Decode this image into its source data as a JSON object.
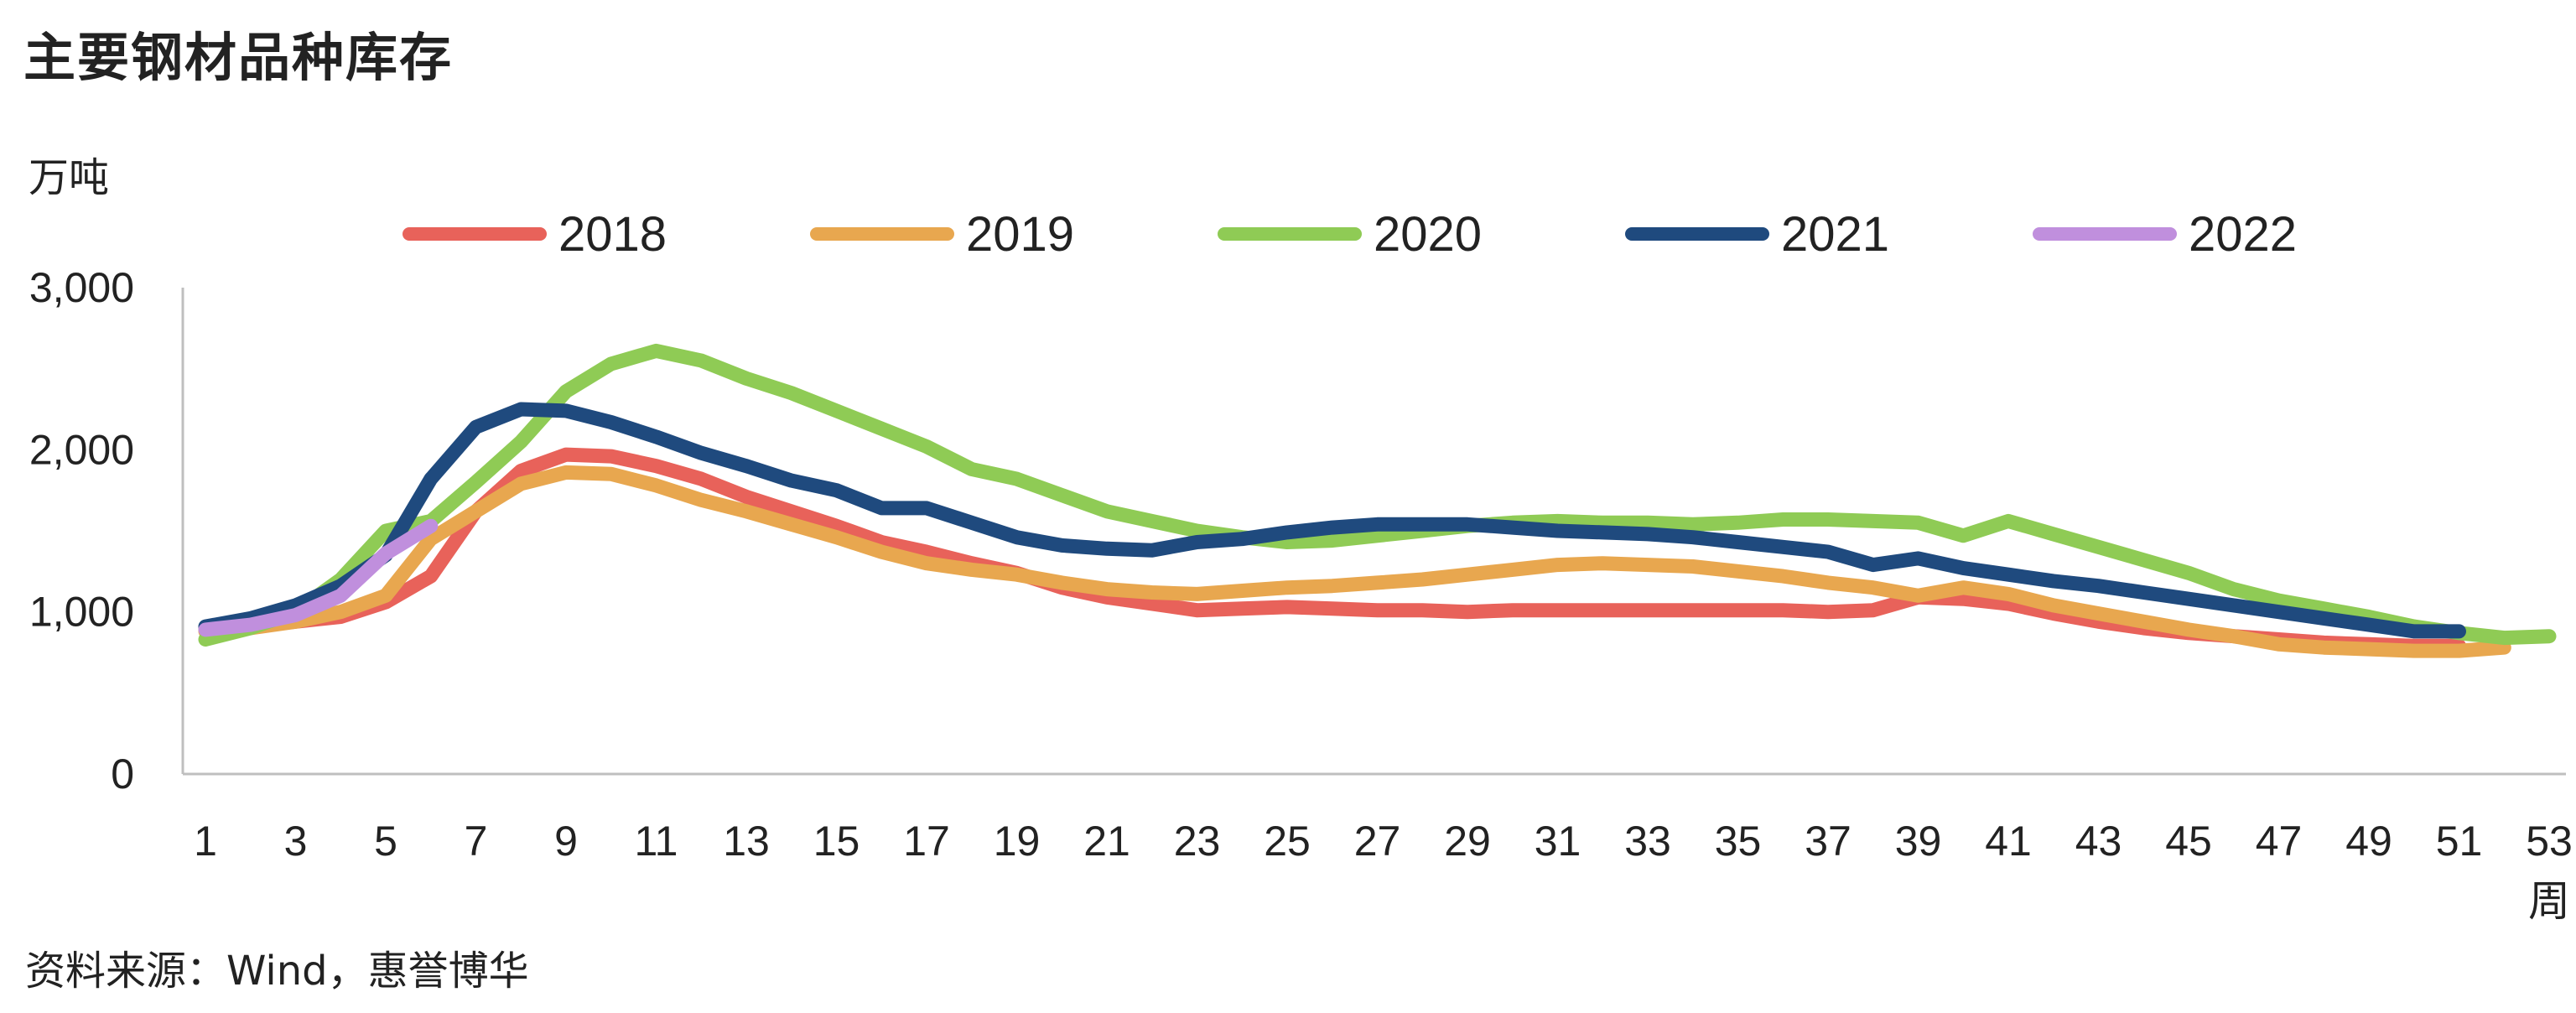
{
  "title": "主要钢材品种库存",
  "unit_label": "万吨",
  "source": "资料来源：Wind，惠誉博华",
  "chart_data": {
    "type": "line",
    "xlabel": "周",
    "ylabel": "万吨",
    "xlim": [
      1,
      53
    ],
    "ylim": [
      0,
      3000
    ],
    "x_ticks": [
      1,
      3,
      5,
      7,
      9,
      11,
      13,
      15,
      17,
      19,
      21,
      23,
      25,
      27,
      29,
      31,
      33,
      35,
      37,
      39,
      41,
      43,
      45,
      47,
      49,
      51,
      53
    ],
    "y_ticks": [
      0,
      1000,
      2000,
      3000
    ],
    "y_tick_labels": [
      "0",
      "1,000",
      "2,000",
      "3,000"
    ],
    "grid": false,
    "legend": "top",
    "series": [
      {
        "name": "2018",
        "color": "#E8625A",
        "x": [
          1,
          2,
          3,
          4,
          5,
          6,
          7,
          8,
          9,
          10,
          11,
          12,
          13,
          14,
          15,
          16,
          17,
          18,
          19,
          20,
          21,
          22,
          23,
          24,
          25,
          26,
          27,
          28,
          29,
          30,
          31,
          32,
          33,
          34,
          35,
          36,
          37,
          38,
          39,
          40,
          41,
          42,
          43,
          44,
          45,
          46,
          47,
          48,
          49,
          50,
          51
        ],
        "values": [
          890,
          910,
          940,
          970,
          1060,
          1220,
          1620,
          1870,
          1970,
          1960,
          1900,
          1820,
          1710,
          1620,
          1530,
          1430,
          1370,
          1300,
          1240,
          1150,
          1090,
          1050,
          1010,
          1020,
          1030,
          1020,
          1010,
          1010,
          1000,
          1010,
          1010,
          1010,
          1010,
          1010,
          1010,
          1010,
          1000,
          1010,
          1090,
          1080,
          1050,
          990,
          940,
          900,
          870,
          850,
          830,
          810,
          800,
          790,
          790
        ]
      },
      {
        "name": "2019",
        "color": "#E8A74F",
        "x": [
          1,
          2,
          3,
          4,
          5,
          6,
          7,
          8,
          9,
          10,
          11,
          12,
          13,
          14,
          15,
          16,
          17,
          18,
          19,
          20,
          21,
          22,
          23,
          24,
          25,
          26,
          27,
          28,
          29,
          30,
          31,
          32,
          33,
          34,
          35,
          36,
          37,
          38,
          39,
          40,
          41,
          42,
          43,
          44,
          45,
          46,
          47,
          48,
          49,
          50,
          51,
          52
        ],
        "values": [
          880,
          900,
          940,
          1000,
          1100,
          1450,
          1620,
          1790,
          1860,
          1850,
          1780,
          1690,
          1620,
          1540,
          1460,
          1370,
          1300,
          1260,
          1230,
          1180,
          1140,
          1120,
          1110,
          1130,
          1150,
          1160,
          1180,
          1200,
          1230,
          1260,
          1290,
          1300,
          1290,
          1280,
          1250,
          1220,
          1180,
          1150,
          1100,
          1150,
          1110,
          1040,
          990,
          940,
          890,
          850,
          800,
          780,
          770,
          760,
          760,
          780
        ]
      },
      {
        "name": "2020",
        "color": "#8FCB55",
        "x": [
          1,
          2,
          3,
          4,
          5,
          6,
          7,
          8,
          9,
          10,
          11,
          12,
          13,
          14,
          15,
          16,
          17,
          18,
          19,
          20,
          21,
          22,
          23,
          24,
          25,
          26,
          27,
          28,
          29,
          30,
          31,
          32,
          33,
          34,
          35,
          36,
          37,
          38,
          39,
          40,
          41,
          42,
          43,
          44,
          45,
          46,
          47,
          48,
          49,
          50,
          51,
          52,
          53
        ],
        "values": [
          830,
          900,
          1000,
          1200,
          1500,
          1560,
          1800,
          2050,
          2360,
          2530,
          2610,
          2550,
          2440,
          2350,
          2240,
          2130,
          2020,
          1880,
          1820,
          1720,
          1620,
          1560,
          1500,
          1460,
          1430,
          1440,
          1470,
          1500,
          1530,
          1550,
          1560,
          1550,
          1550,
          1540,
          1550,
          1570,
          1570,
          1560,
          1550,
          1470,
          1560,
          1480,
          1400,
          1320,
          1240,
          1140,
          1070,
          1020,
          970,
          910,
          870,
          840,
          850
        ]
      },
      {
        "name": "2021",
        "color": "#1F4A7E",
        "x": [
          1,
          2,
          3,
          4,
          5,
          6,
          7,
          8,
          9,
          10,
          11,
          12,
          13,
          14,
          15,
          16,
          17,
          18,
          19,
          20,
          21,
          22,
          23,
          24,
          25,
          26,
          27,
          28,
          29,
          30,
          31,
          32,
          33,
          34,
          35,
          36,
          37,
          38,
          39,
          40,
          41,
          42,
          43,
          44,
          45,
          46,
          47,
          48,
          49,
          50,
          51
        ],
        "values": [
          910,
          960,
          1040,
          1160,
          1350,
          1820,
          2140,
          2250,
          2240,
          2170,
          2080,
          1980,
          1900,
          1810,
          1750,
          1640,
          1640,
          1550,
          1460,
          1410,
          1390,
          1380,
          1430,
          1450,
          1490,
          1520,
          1540,
          1540,
          1540,
          1520,
          1500,
          1490,
          1480,
          1460,
          1430,
          1400,
          1370,
          1290,
          1330,
          1270,
          1230,
          1190,
          1160,
          1120,
          1080,
          1040,
          1000,
          960,
          920,
          880,
          880
        ]
      },
      {
        "name": "2022",
        "color": "#C08FDD",
        "x": [
          1,
          2,
          3,
          4,
          5,
          6
        ],
        "values": [
          890,
          920,
          980,
          1100,
          1360,
          1530
        ]
      }
    ]
  }
}
